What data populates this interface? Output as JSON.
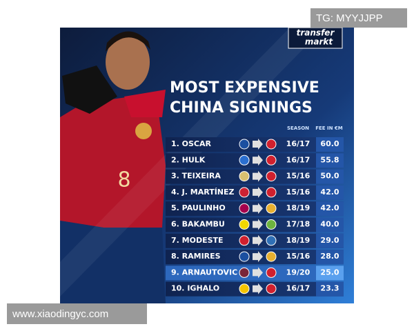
{
  "watermark_top": "TG: MYYJJPP",
  "watermark_bottom": "www.xiaodingyc.com",
  "logo": {
    "line1": "transfer",
    "line2": "markt"
  },
  "title": {
    "line1": "MOST EXPENSIVE",
    "line2": "CHINA SIGNINGS"
  },
  "table": {
    "headers": {
      "season": "SEASON",
      "fee": "FEE IN €M"
    },
    "rows": [
      {
        "player": "1. OSCAR",
        "season": "16/17",
        "fee": "60.0"
      },
      {
        "player": "2. HULK",
        "season": "16/17",
        "fee": "55.8"
      },
      {
        "player": "3. TEIXEIRA",
        "season": "15/16",
        "fee": "50.0"
      },
      {
        "player": "4. J. MARTÍNEZ",
        "season": "15/16",
        "fee": "42.0"
      },
      {
        "player": "5. PAULINHO",
        "season": "18/19",
        "fee": "42.0"
      },
      {
        "player": "6. BAKAMBU",
        "season": "17/18",
        "fee": "40.0"
      },
      {
        "player": "7. MODESTE",
        "season": "18/19",
        "fee": "29.0"
      },
      {
        "player": "8. RAMIRES",
        "season": "15/16",
        "fee": "28.0"
      },
      {
        "player": "9. ARNAUTOVIC",
        "season": "19/20",
        "fee": "25.0"
      },
      {
        "player": "10. IGHALO",
        "season": "16/17",
        "fee": "23.3"
      }
    ]
  }
}
